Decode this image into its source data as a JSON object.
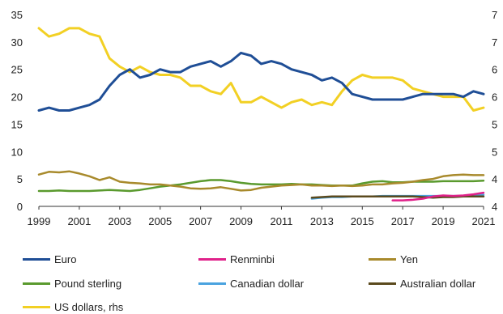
{
  "chart_data": {
    "type": "line",
    "title": "",
    "xlabel": "",
    "ylabel": "",
    "x_ticks": [
      "1999",
      "2001",
      "2003",
      "2005",
      "2007",
      "2009",
      "2011",
      "2013",
      "2015",
      "2017",
      "2019",
      "2021"
    ],
    "x_range": [
      1999,
      2021
    ],
    "y_left_range": [
      0,
      35
    ],
    "y_left_ticks": [
      "0",
      "5",
      "10",
      "15",
      "20",
      "25",
      "30",
      "35"
    ],
    "y_right_range": [
      40,
      75
    ],
    "y_right_ticks_visible": [
      "4",
      "4",
      "5",
      "5",
      "6",
      "6",
      "7",
      "7"
    ],
    "grid": false,
    "legend_position": "bottom",
    "series": [
      {
        "name": "Euro",
        "color": "#1f4e96",
        "axis": "left",
        "x": [
          1999,
          1999.5,
          2000,
          2000.5,
          2001,
          2001.5,
          2002,
          2002.5,
          2003,
          2003.5,
          2004,
          2004.5,
          2005,
          2005.5,
          2006,
          2006.5,
          2007,
          2007.5,
          2008,
          2008.5,
          2009,
          2009.5,
          2010,
          2010.5,
          2011,
          2011.5,
          2012,
          2012.5,
          2013,
          2013.5,
          2014,
          2014.5,
          2015,
          2015.5,
          2016,
          2016.5,
          2017,
          2017.5,
          2018,
          2018.5,
          2019,
          2019.5,
          2020,
          2020.5,
          2021
        ],
        "values": [
          17.5,
          18,
          17.5,
          17.5,
          18,
          18.5,
          19.5,
          22,
          24,
          25,
          23.5,
          24,
          25,
          24.5,
          24.5,
          25.5,
          26,
          26.5,
          25.5,
          26.5,
          28,
          27.5,
          26,
          26.5,
          26,
          25,
          24.5,
          24,
          23,
          23.5,
          22.5,
          20.5,
          20,
          19.5,
          19.5,
          19.5,
          19.5,
          20,
          20.5,
          20.5,
          20.5,
          20.5,
          20,
          21,
          20.5
        ]
      },
      {
        "name": "Renminbi",
        "color": "#e0218a",
        "axis": "left",
        "x": [
          2016.5,
          2017,
          2017.5,
          2018,
          2018.5,
          2019,
          2019.5,
          2020,
          2020.5,
          2021
        ],
        "values": [
          1.1,
          1.1,
          1.2,
          1.4,
          1.8,
          2.0,
          1.9,
          2.0,
          2.2,
          2.5
        ]
      },
      {
        "name": "Yen",
        "color": "#a88a2c",
        "axis": "left",
        "x": [
          1999,
          1999.5,
          2000,
          2000.5,
          2001,
          2001.5,
          2002,
          2002.5,
          2003,
          2003.5,
          2004,
          2004.5,
          2005,
          2005.5,
          2006,
          2006.5,
          2007,
          2007.5,
          2008,
          2008.5,
          2009,
          2009.5,
          2010,
          2010.5,
          2011,
          2011.5,
          2012,
          2012.5,
          2013,
          2013.5,
          2014,
          2014.5,
          2015,
          2015.5,
          2016,
          2016.5,
          2017,
          2017.5,
          2018,
          2018.5,
          2019,
          2019.5,
          2020,
          2020.5,
          2021
        ],
        "values": [
          5.8,
          6.3,
          6.2,
          6.4,
          6.0,
          5.5,
          4.8,
          5.3,
          4.5,
          4.3,
          4.2,
          4.0,
          4.0,
          3.8,
          3.6,
          3.3,
          3.2,
          3.3,
          3.5,
          3.2,
          2.9,
          3.0,
          3.4,
          3.6,
          3.8,
          3.9,
          4.0,
          3.8,
          3.8,
          3.7,
          3.8,
          3.7,
          3.8,
          4.0,
          4.0,
          4.2,
          4.3,
          4.5,
          4.8,
          5.0,
          5.5,
          5.7,
          5.8,
          5.7,
          5.7
        ]
      },
      {
        "name": "Pound sterling",
        "color": "#5a9a2e",
        "axis": "left",
        "x": [
          1999,
          1999.5,
          2000,
          2000.5,
          2001,
          2001.5,
          2002,
          2002.5,
          2003,
          2003.5,
          2004,
          2004.5,
          2005,
          2005.5,
          2006,
          2006.5,
          2007,
          2007.5,
          2008,
          2008.5,
          2009,
          2009.5,
          2010,
          2010.5,
          2011,
          2011.5,
          2012,
          2012.5,
          2013,
          2013.5,
          2014,
          2014.5,
          2015,
          2015.5,
          2016,
          2016.5,
          2017,
          2017.5,
          2018,
          2018.5,
          2019,
          2019.5,
          2020,
          2020.5,
          2021
        ],
        "values": [
          2.8,
          2.8,
          2.9,
          2.8,
          2.8,
          2.8,
          2.9,
          3.0,
          2.9,
          2.8,
          3.0,
          3.3,
          3.6,
          3.8,
          4.0,
          4.3,
          4.6,
          4.8,
          4.8,
          4.6,
          4.3,
          4.1,
          4.0,
          4.0,
          4.0,
          4.1,
          4.0,
          4.0,
          3.9,
          3.8,
          3.8,
          3.8,
          4.2,
          4.5,
          4.6,
          4.4,
          4.4,
          4.5,
          4.5,
          4.5,
          4.6,
          4.6,
          4.6,
          4.6,
          4.7
        ]
      },
      {
        "name": "Canadian dollar",
        "color": "#4aa3df",
        "axis": "left",
        "x": [
          2012.5,
          2013,
          2013.5,
          2014,
          2014.5,
          2015,
          2015.5,
          2016,
          2016.5,
          2017,
          2017.5,
          2018,
          2018.5,
          2019,
          2019.5,
          2020,
          2020.5,
          2021
        ],
        "values": [
          1.4,
          1.6,
          1.7,
          1.7,
          1.8,
          1.8,
          1.8,
          1.9,
          1.9,
          1.9,
          1.9,
          1.9,
          1.9,
          1.9,
          1.9,
          1.9,
          2.0,
          2.1
        ]
      },
      {
        "name": "Australian dollar",
        "color": "#5b4a1e",
        "axis": "left",
        "x": [
          2012.5,
          2013,
          2013.5,
          2014,
          2014.5,
          2015,
          2015.5,
          2016,
          2016.5,
          2017,
          2017.5,
          2018,
          2018.5,
          2019,
          2019.5,
          2020,
          2020.5,
          2021
        ],
        "values": [
          1.6,
          1.7,
          1.8,
          1.8,
          1.8,
          1.8,
          1.8,
          1.8,
          1.8,
          1.8,
          1.8,
          1.7,
          1.6,
          1.7,
          1.7,
          1.8,
          1.8,
          1.8
        ]
      },
      {
        "name": "US dollars, rhs",
        "color": "#f2d024",
        "axis": "right",
        "x": [
          1999,
          1999.5,
          2000,
          2000.5,
          2001,
          2001.5,
          2002,
          2002.5,
          2003,
          2003.5,
          2004,
          2004.5,
          2005,
          2005.5,
          2006,
          2006.5,
          2007,
          2007.5,
          2008,
          2008.5,
          2009,
          2009.5,
          2010,
          2010.5,
          2011,
          2011.5,
          2012,
          2012.5,
          2013,
          2013.5,
          2014,
          2014.5,
          2015,
          2015.5,
          2016,
          2016.5,
          2017,
          2017.5,
          2018,
          2018.5,
          2019,
          2019.5,
          2020,
          2020.5,
          2021
        ],
        "values": [
          72.5,
          71,
          71.5,
          72.5,
          72.5,
          71.5,
          71,
          67,
          65.5,
          64.5,
          65.5,
          64.5,
          64,
          64,
          63.5,
          62,
          62,
          61,
          60.5,
          62.5,
          59,
          59,
          60,
          59,
          58,
          59,
          59.5,
          58.5,
          59,
          58.5,
          61,
          63,
          64,
          63.5,
          63.5,
          63.5,
          63,
          61.5,
          61,
          60.5,
          60,
          60,
          60,
          57.5,
          58
        ]
      }
    ]
  }
}
